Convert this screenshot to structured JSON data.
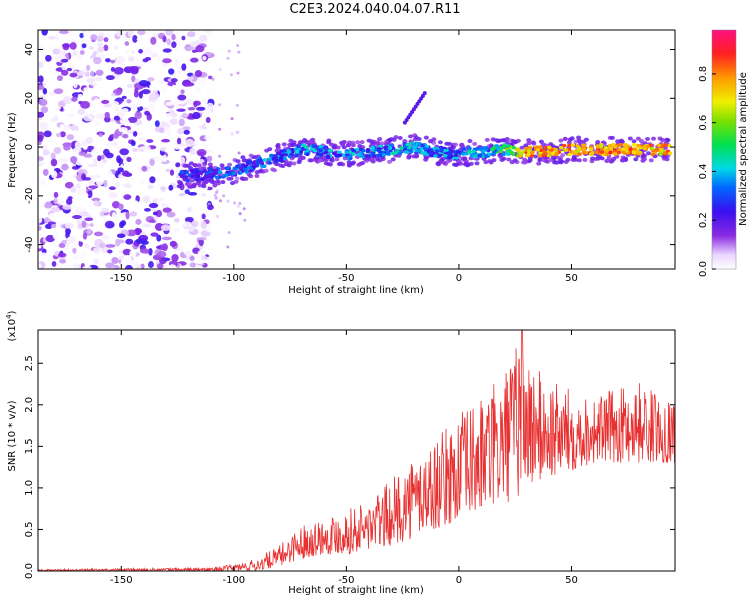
{
  "title": "C2E3.2024.040.04.07.R11",
  "colors": {
    "line": "#e83030",
    "axis": "#000000",
    "background": "#ffffff"
  },
  "chart_data": [
    {
      "type": "heatmap",
      "xlabel": "Height of straight line (km)",
      "ylabel": "Frequency (Hz)",
      "xlim": [
        -187,
        96
      ],
      "ylim": [
        -50,
        48
      ],
      "xticks": [
        -150,
        -100,
        -50,
        0,
        50
      ],
      "yticks": [
        -40,
        -20,
        0,
        20,
        40
      ],
      "colorbar": {
        "label": "Normalized spectral amplitude",
        "range": [
          0,
          0.98
        ],
        "ticks": [
          0.0,
          0.2,
          0.4,
          0.6,
          0.8
        ],
        "tick_labels": [
          "0.0",
          "0.2",
          "0.4",
          "0.6",
          "0.8"
        ],
        "colormap": "rainbow (white-violet-blue-cyan-green-yellow-orange-red-magenta)"
      },
      "features": [
        {
          "region": "noise",
          "x_range": [
            -187,
            -110
          ],
          "freq_range": [
            -50,
            48
          ],
          "amplitude": "0.0-0.1"
        },
        {
          "region": "signal",
          "x_start": -125,
          "freq_start": -12,
          "x_end": -20,
          "freq_end": 0,
          "amplitude": "0.3-0.5"
        },
        {
          "region": "signal",
          "x_start": -20,
          "freq_start": 0,
          "x_end": 96,
          "freq_end": 0,
          "amplitude": "0.3-0.9"
        },
        {
          "region": "strong band",
          "x_range": [
            27,
            94
          ],
          "freq": -2,
          "amplitude": "0.85-0.95"
        }
      ],
      "ridge": {
        "x": [
          -125,
          -110,
          -100,
          -90,
          -80,
          -70,
          -60,
          -50,
          -40,
          -30,
          -20,
          -10,
          0,
          10,
          20,
          30,
          40,
          50,
          60,
          70,
          80,
          90,
          94
        ],
        "freq": [
          -12,
          -11,
          -10,
          -7,
          -4,
          -1,
          -2,
          -3,
          -2,
          -1,
          0,
          -2,
          -3,
          -2,
          -1,
          -2,
          -2,
          -1,
          -1,
          -1,
          -1,
          -1,
          -1
        ],
        "amplitude": [
          0.35,
          0.38,
          0.4,
          0.42,
          0.45,
          0.48,
          0.45,
          0.5,
          0.45,
          0.48,
          0.5,
          0.45,
          0.5,
          0.48,
          0.6,
          0.9,
          0.9,
          0.88,
          0.9,
          0.92,
          0.9,
          0.88,
          0.9
        ]
      }
    },
    {
      "type": "line",
      "xlabel": "Height of straight line (km)",
      "ylabel": "SNR (10 * v/v)",
      "multiplier_label": "(x10",
      "multiplier_exponent": "4",
      "multiplier_close": ")",
      "xlim": [
        -187,
        96
      ],
      "ylim": [
        0,
        2.9
      ],
      "xticks": [
        -150,
        -100,
        -50,
        0,
        50
      ],
      "yticks": [
        0.0,
        0.5,
        1.0,
        1.5,
        2.0,
        2.5
      ],
      "ytick_labels": [
        "0.0",
        "0.5",
        "1.0",
        "1.5",
        "2.0",
        "2.5"
      ],
      "envelope": {
        "x": [
          -187,
          -150,
          -110,
          -100,
          -90,
          -80,
          -75,
          -70,
          -60,
          -50,
          -40,
          -30,
          -20,
          -10,
          0,
          10,
          20,
          28,
          30,
          40,
          50,
          60,
          70,
          80,
          90,
          96
        ],
        "low": [
          0.0,
          0.0,
          0.0,
          0.0,
          0.0,
          0.05,
          0.1,
          0.15,
          0.2,
          0.2,
          0.25,
          0.3,
          0.4,
          0.5,
          0.6,
          0.7,
          0.8,
          0.9,
          1.0,
          1.1,
          1.2,
          1.3,
          1.3,
          1.3,
          1.3,
          1.3
        ],
        "high": [
          0.02,
          0.03,
          0.04,
          0.08,
          0.15,
          0.3,
          0.45,
          0.55,
          0.65,
          0.75,
          0.85,
          1.1,
          1.4,
          1.6,
          1.9,
          2.1,
          2.4,
          2.9,
          2.6,
          2.3,
          2.2,
          2.1,
          2.2,
          2.3,
          2.1,
          2.1
        ]
      },
      "peak": {
        "x": 28,
        "y": 2.9
      }
    }
  ]
}
